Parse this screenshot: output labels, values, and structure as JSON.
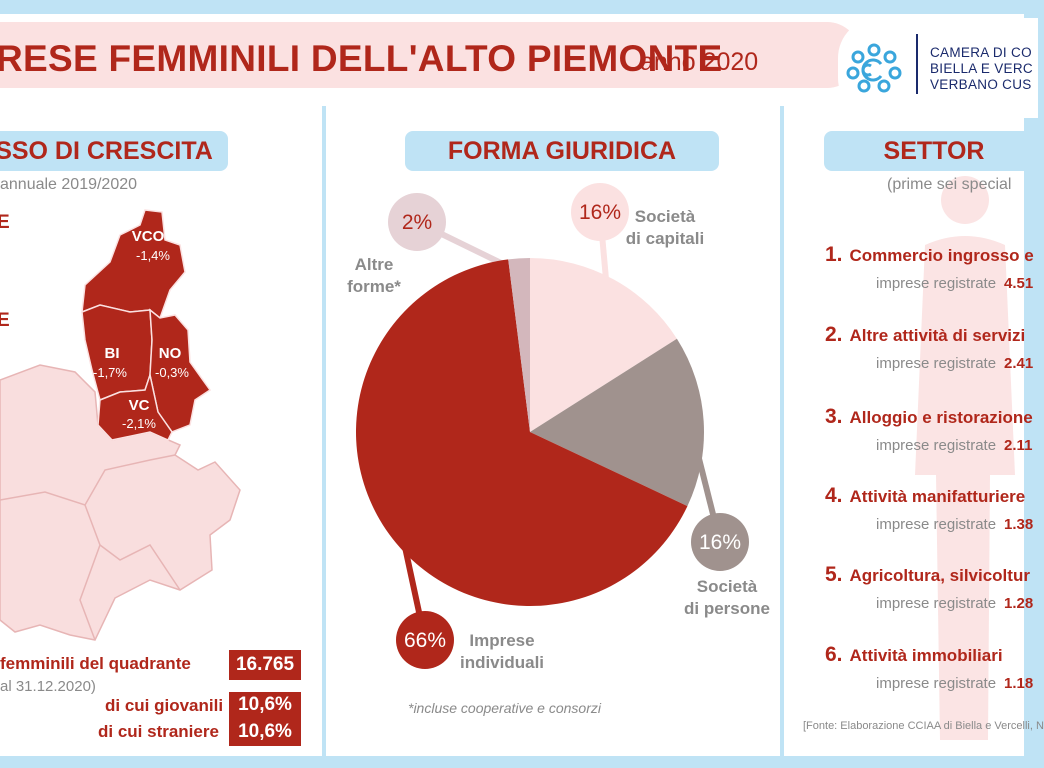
{
  "header": {
    "title": "RESE FEMMINILI DELL'ALTO PIEMONTE",
    "year": "anno 2020",
    "logo_lines": [
      "CAMERA DI CO",
      "BIELLA E VERC",
      "VERBANO CUS"
    ]
  },
  "colors": {
    "brand_red": "#b0271b",
    "light_pink": "#fbe1e1",
    "light_blue": "#bfe3f5",
    "grey": "#a0928e",
    "mauve": "#d3b7bc",
    "map_light": "#f9dede"
  },
  "growth": {
    "header": "SSO DI CRESCITA",
    "subtitle": "annuale 2019/2020",
    "left_fragments": [
      "E",
      "E"
    ],
    "provinces": [
      {
        "code": "VCO",
        "value": "-1,4%"
      },
      {
        "code": "BI",
        "value": "-1,7%"
      },
      {
        "code": "NO",
        "value": "-0,3%"
      },
      {
        "code": "VC",
        "value": "-2,1%"
      }
    ],
    "stats": {
      "total_label": "femminili del quadrante",
      "total_value": "16.765",
      "total_note": "al 31.12.2020)",
      "young_label": "di cui giovanili",
      "young_value": "10,6%",
      "foreign_label": "di cui straniere",
      "foreign_value": "10,6%"
    }
  },
  "legal_form": {
    "header": "FORMA GIURIDICA",
    "footnote": "*incluse cooperative e consorzi"
  },
  "chart_data": {
    "type": "pie",
    "title": "FORMA GIURIDICA",
    "slices": [
      {
        "label": "Società di capitali",
        "label_lines": [
          "Società",
          "di capitali"
        ],
        "pct_label": "16%",
        "value": 16,
        "color": "#fbe1e1"
      },
      {
        "label": "Società di persone",
        "label_lines": [
          "Società",
          "di persone"
        ],
        "pct_label": "16%",
        "value": 16,
        "color": "#a0928e"
      },
      {
        "label": "Imprese individuali",
        "label_lines": [
          "Imprese",
          "individuali"
        ],
        "pct_label": "66%",
        "value": 66,
        "color": "#b0271b"
      },
      {
        "label": "Altre forme*",
        "label_lines": [
          "Altre",
          "forme*"
        ],
        "pct_label": "2%",
        "value": 2,
        "color": "#d3b7bc"
      }
    ]
  },
  "sectors": {
    "header": "SETTOR",
    "subtitle": "(prime sei special",
    "reg_label": "imprese registrate",
    "items": [
      {
        "num": "1.",
        "title": "Commercio ingrosso e",
        "value": "4.51"
      },
      {
        "num": "2.",
        "title": "Altre attività di servizi",
        "value": "2.41"
      },
      {
        "num": "3.",
        "title": "Alloggio e ristorazione",
        "value": "2.11"
      },
      {
        "num": "4.",
        "title": "Attività manifatturiere",
        "value": "1.38"
      },
      {
        "num": "5.",
        "title": "Agricoltura, silvicoltur",
        "value": "1.28"
      },
      {
        "num": "6.",
        "title": "Attività immobiliari",
        "value": "1.18"
      }
    ],
    "source": "[Fonte: Elaborazione CCIAA di Biella e Vercelli, N"
  }
}
